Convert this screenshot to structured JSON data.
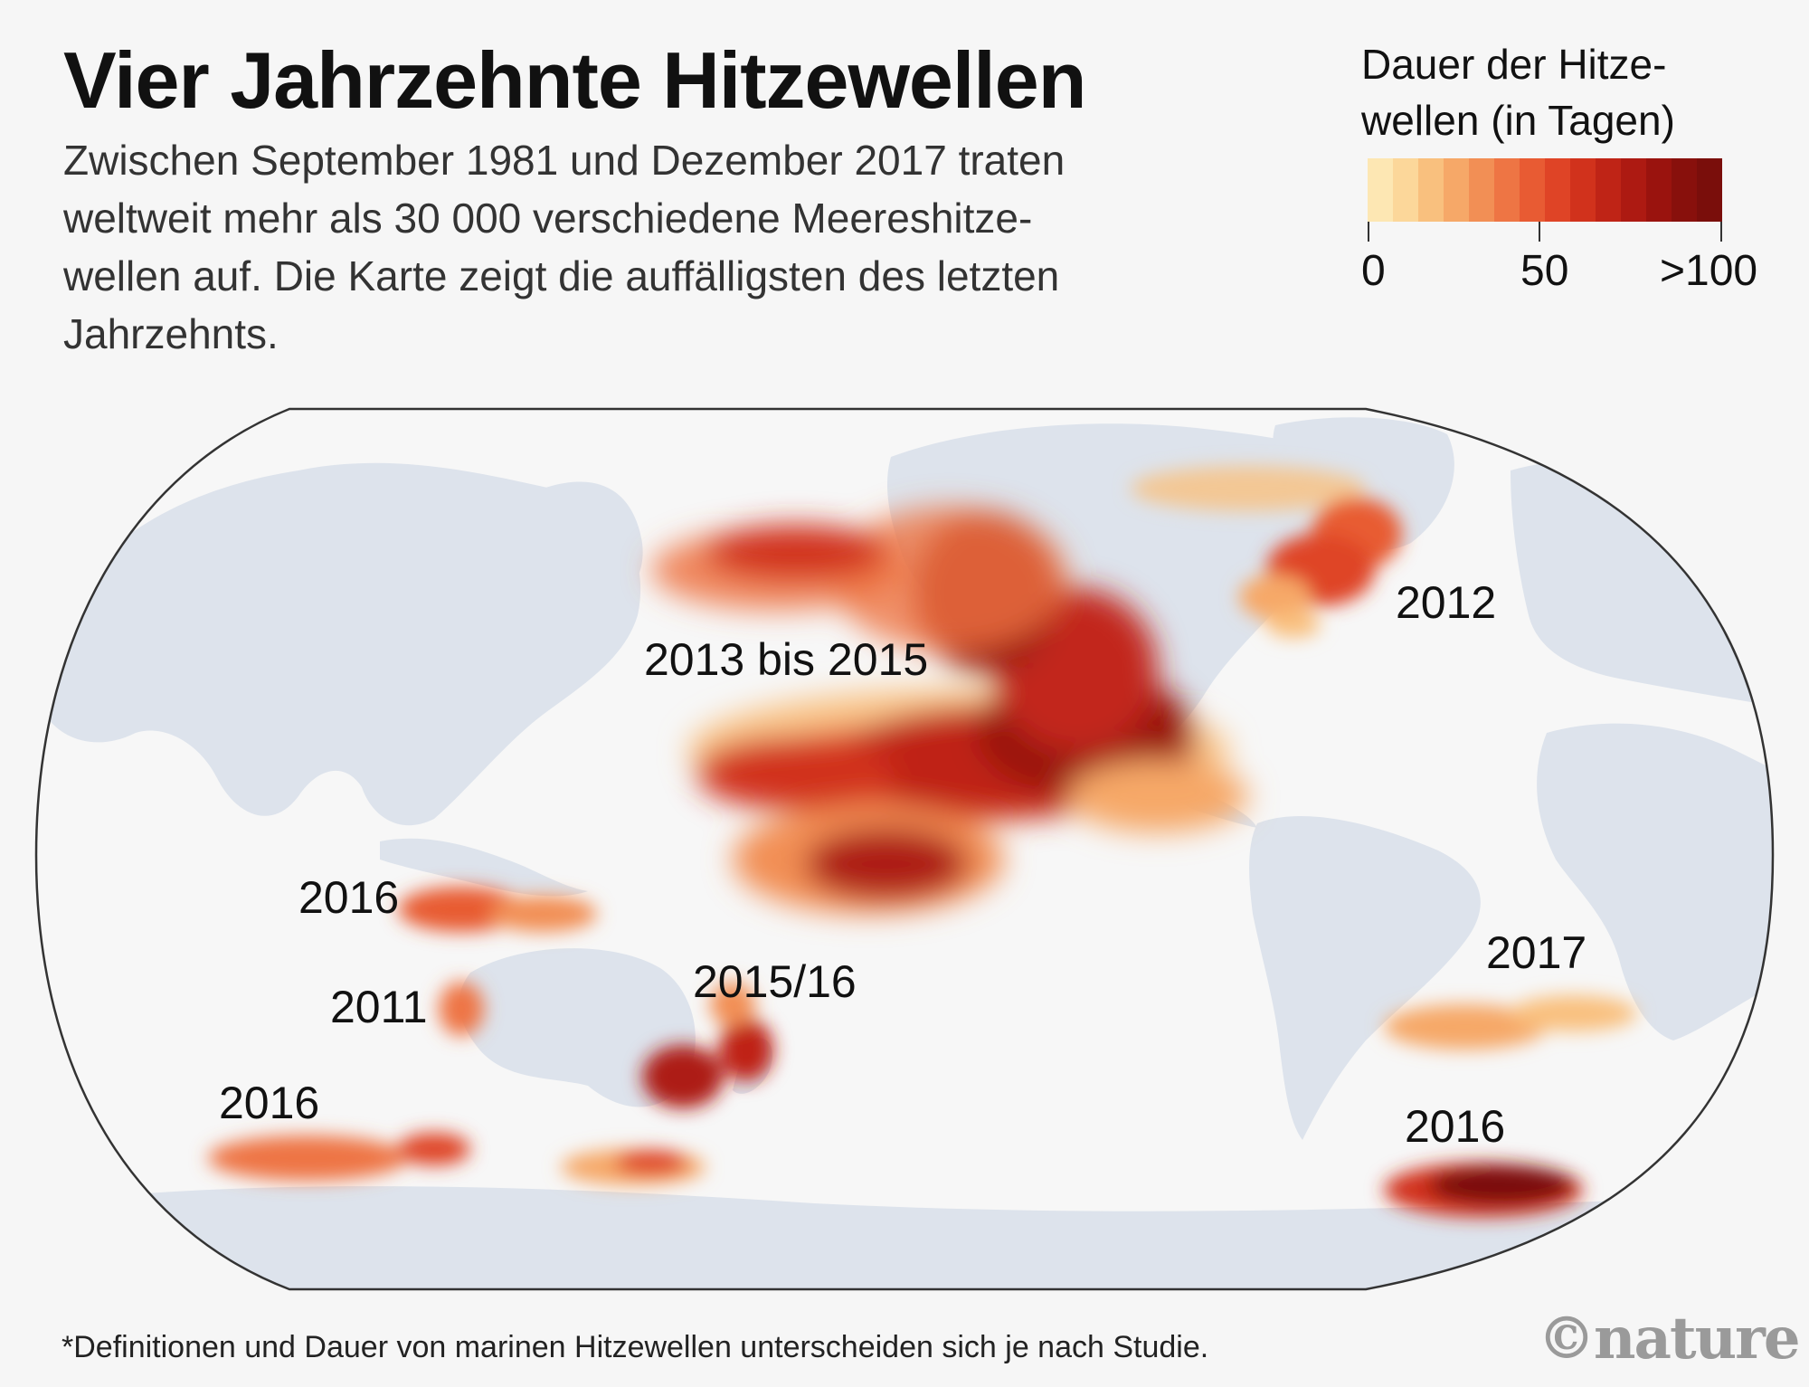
{
  "header": {
    "title": "Vier Jahrzehnte Hitzewellen",
    "subtitle": "Zwischen September 1981 und Dezember 2017 traten weltweit mehr als 30 000 verschiedene Meereshitze­wellen auf. Die Karte zeigt die auffälligsten des letzten Jahrzehnts."
  },
  "legend": {
    "title": "Dauer der Hitze­wellen (in Tagen)",
    "ticks": [
      "0",
      "50",
      ">100"
    ],
    "colors": [
      "#fde7b3",
      "#fcd79a",
      "#f9c07e",
      "#f6a868",
      "#f28f55",
      "#ee7544",
      "#e85b33",
      "#df4426",
      "#d1321c",
      "#bf2416",
      "#ad1a12",
      "#9a130e",
      "#88100c",
      "#7a0e0b"
    ]
  },
  "map": {
    "labels": [
      "2013 bis 2015",
      "2012",
      "2016",
      "2011",
      "2015/16",
      "2016",
      "2017",
      "2016"
    ],
    "colors": {
      "land": "#dde3ec",
      "ocean": "#f7f7f7",
      "outline": "#333333"
    }
  },
  "footer": {
    "footnote": "*Definitionen und Dauer von marinen Hitzewellen unterscheiden sich je nach Studie.",
    "logo": "©nature"
  }
}
